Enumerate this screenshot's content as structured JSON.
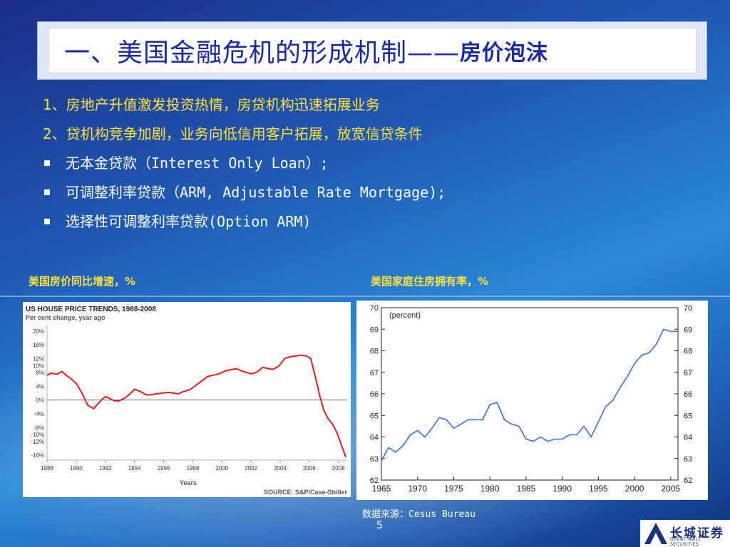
{
  "title": {
    "main": "一、美国金融危机的形成机制——",
    "sub": "房价泡沫"
  },
  "points": [
    {
      "text": "1、房地产升值激发投资热情，房贷机构迅速拓展业务",
      "style": "number"
    },
    {
      "text": "2、贷机构竞争加剧，业务向低信用客户拓展，放宽信贷条件",
      "style": "number"
    },
    {
      "text": "无本金贷款（Interest Only Loan）;",
      "style": "bullet"
    },
    {
      "text": "可调整利率贷款（ARM, Adjustable Rate Mortgage);",
      "style": "bullet"
    },
    {
      "text": "选择性可调整利率贷款(Option ARM)",
      "style": "bullet"
    }
  ],
  "captions": {
    "left": "美国房价同比增速，%",
    "right": "美国家庭住房拥有率，%"
  },
  "source_note": "数据来源：Cesus Bureau",
  "page_number": "5",
  "logo": {
    "cn": "长城证券",
    "en": "GREAT WALL SECURITIES"
  },
  "chart_data": [
    {
      "type": "line",
      "title": "US HOUSE PRICE TRENDS, 1988-2008",
      "subtitle": "Per cent change, year ago",
      "xlabel": "Years",
      "source": "SOURCE: S&P/Case-Shiller",
      "color": "#e02020",
      "xlim": [
        1988,
        2008.6
      ],
      "ylim": [
        -17,
        21
      ],
      "y_ticks": [
        20,
        16,
        12,
        10,
        8,
        4,
        0,
        -4,
        -8,
        -10,
        -12,
        -16
      ],
      "y_tick_labels": [
        "20%",
        "16%",
        "12%",
        "10%",
        "8%",
        "4%",
        "0%",
        "-4%",
        "-8%",
        "-10%",
        "-12%",
        "-16%"
      ],
      "x_ticks": [
        1988,
        1990,
        1992,
        1994,
        1996,
        1998,
        2000,
        2002,
        2004,
        2006,
        2008
      ],
      "series": [
        {
          "x": [
            1988.0,
            1988.3,
            1988.7,
            1989.0,
            1989.3,
            1989.7,
            1990.0,
            1990.4,
            1990.8,
            1991.2,
            1991.5,
            1991.8,
            1992.0,
            1992.3,
            1992.6,
            1992.9,
            1993.3,
            1993.7,
            1994.0,
            1994.4,
            1994.8,
            1995.1,
            1995.5,
            1995.9,
            1996.3,
            1996.7,
            1997.0,
            1997.4,
            1997.8,
            1998.2,
            1998.6,
            1999.0,
            1999.4,
            1999.8,
            2000.2,
            2000.6,
            2001.0,
            2001.3,
            2001.7,
            2002.0,
            2002.4,
            2002.8,
            2003.1,
            2003.5,
            2003.9,
            2004.3,
            2004.7,
            2005.1,
            2005.4,
            2005.8,
            2006.1,
            2006.4,
            2006.7,
            2007.0,
            2007.3,
            2007.6,
            2007.9,
            2008.2,
            2008.5
          ],
          "y": [
            7.2,
            7.8,
            7.5,
            8.3,
            7.2,
            6.0,
            4.8,
            2.0,
            -1.5,
            -2.5,
            -1.0,
            0.3,
            1.0,
            0.5,
            -0.2,
            -0.3,
            0.5,
            1.8,
            3.1,
            2.5,
            1.5,
            1.5,
            1.8,
            2.0,
            2.2,
            2.0,
            1.8,
            2.5,
            3.0,
            4.2,
            5.5,
            6.8,
            7.2,
            7.6,
            8.4,
            8.8,
            9.1,
            8.5,
            8.0,
            7.6,
            8.1,
            9.5,
            9.2,
            8.9,
            9.8,
            12.0,
            12.6,
            12.8,
            13.0,
            12.8,
            12.0,
            7.0,
            1.5,
            -3.0,
            -5.5,
            -7.0,
            -9.5,
            -13.0,
            -16.5
          ]
        }
      ]
    },
    {
      "type": "line",
      "title": "(percent)",
      "color": "#3b6fd9",
      "xlim": [
        1965,
        2006
      ],
      "ylim": [
        62,
        70
      ],
      "y_ticks": [
        62,
        63,
        64,
        65,
        66,
        67,
        68,
        69,
        70
      ],
      "x_ticks": [
        1965,
        1970,
        1975,
        1980,
        1985,
        1990,
        1995,
        2000,
        2005
      ],
      "series": [
        {
          "x": [
            1965,
            1966,
            1967,
            1968,
            1969,
            1970,
            1971,
            1972,
            1973,
            1974,
            1975,
            1976,
            1977,
            1978,
            1979,
            1980,
            1981,
            1982,
            1983,
            1984,
            1985,
            1986,
            1987,
            1988,
            1989,
            1990,
            1991,
            1992,
            1993,
            1994,
            1995,
            1996,
            1997,
            1998,
            1999,
            2000,
            2001,
            2002,
            2003,
            2004,
            2005,
            2006
          ],
          "y": [
            62.9,
            63.5,
            63.3,
            63.6,
            64.1,
            64.3,
            64.0,
            64.4,
            64.9,
            64.8,
            64.4,
            64.6,
            64.8,
            64.8,
            64.8,
            65.5,
            65.6,
            64.8,
            64.6,
            64.5,
            63.9,
            63.8,
            64.0,
            63.8,
            63.9,
            63.9,
            64.1,
            64.1,
            64.5,
            64.0,
            64.7,
            65.4,
            65.7,
            66.3,
            66.8,
            67.4,
            67.8,
            67.9,
            68.3,
            69.0,
            68.9,
            68.9
          ]
        }
      ]
    }
  ]
}
